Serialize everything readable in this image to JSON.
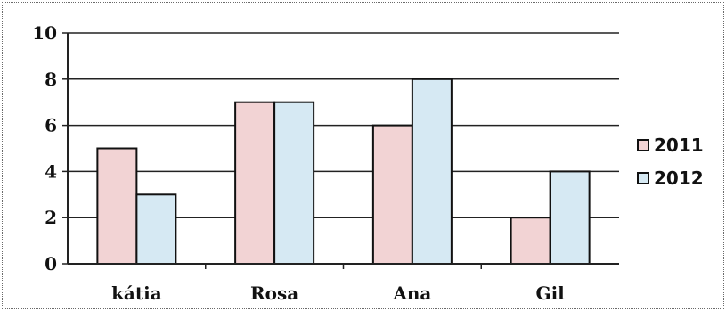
{
  "chart_data": {
    "type": "bar",
    "categories": [
      "kátia",
      "Rosa",
      "Ana",
      "Gil"
    ],
    "series": [
      {
        "name": "2011",
        "values": [
          5,
          7,
          6,
          2
        ],
        "color": "#f2d3d4"
      },
      {
        "name": "2012",
        "values": [
          3,
          7,
          8,
          4
        ],
        "color": "#d6e9f3"
      }
    ],
    "title": "",
    "xlabel": "",
    "ylabel": "",
    "ylim": [
      0,
      10
    ],
    "yticks": [
      "0",
      "2",
      "4",
      "6",
      "8",
      "10"
    ],
    "grid": true,
    "legend": "right"
  }
}
